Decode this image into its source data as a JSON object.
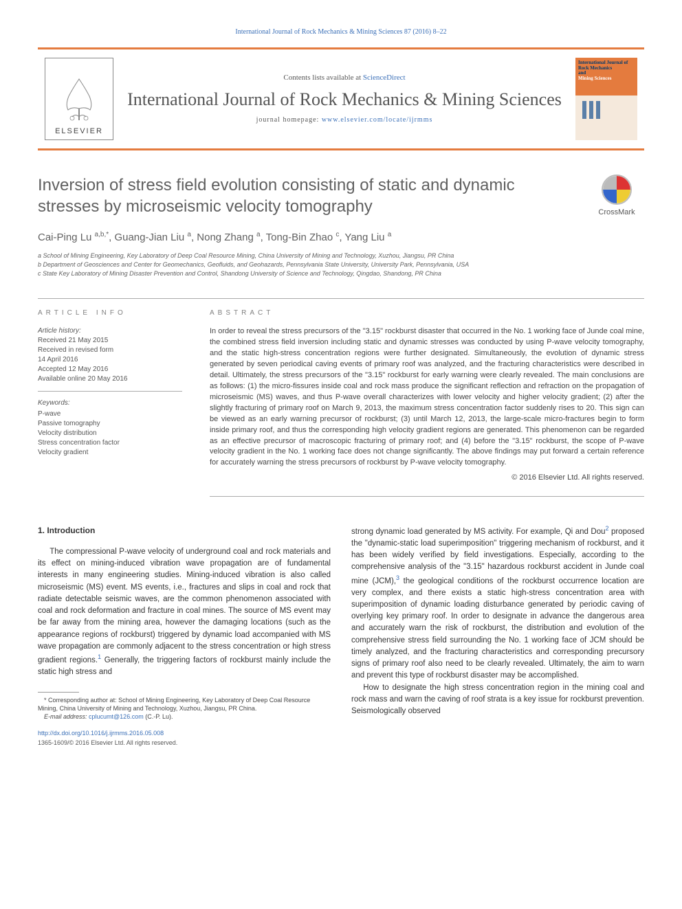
{
  "colors": {
    "accent_orange": "#e47b3e",
    "link_blue": "#3a6fb7",
    "heading_gray": "#606060",
    "body_text": "#333333",
    "meta_text": "#555555",
    "border_gray": "#aaaaaa"
  },
  "typography": {
    "journal_title_size_pt": 26,
    "article_title_size_pt": 24,
    "authors_size_pt": 15,
    "abstract_size_pt": 11,
    "body_size_pt": 11.5,
    "affiliation_size_pt": 9,
    "history_size_pt": 10
  },
  "header": {
    "top_citation": "International Journal of Rock Mechanics & Mining Sciences 87 (2016) 8–22",
    "contents_prefix": "Contents lists available at ",
    "contents_link": "ScienceDirect",
    "journal_title": "International Journal of Rock Mechanics & Mining Sciences",
    "homepage_prefix": "journal homepage: ",
    "homepage_link": "www.elsevier.com/locate/ijrmms",
    "publisher_logo_text": "ELSEVIER",
    "cover": {
      "line1": "International Journal of",
      "line2": "Rock Mechanics",
      "line3": "and",
      "line4": "Mining Sciences"
    }
  },
  "crossmark": {
    "label": "CrossMark"
  },
  "article": {
    "title": "Inversion of stress field evolution consisting of static and dynamic stresses by microseismic velocity tomography",
    "authors_html": "Cai-Ping Lu <sup>a,b,*</sup>, Guang-Jian Liu <sup>a</sup>, Nong Zhang <sup>a</sup>, Tong-Bin Zhao <sup>c</sup>, Yang Liu <sup>a</sup>",
    "affiliations": [
      "a School of Mining Engineering, Key Laboratory of Deep Coal Resource Mining, China University of Mining and Technology, Xuzhou, Jiangsu, PR China",
      "b Department of Geosciences and Center for Geomechanics, Geofluids, and Geohazards, Pennsylvania State University, University Park, Pennsylvania, USA",
      "c State Key Laboratory of Mining Disaster Prevention and Control, Shandong University of Science and Technology, Qingdao, Shandong, PR China"
    ]
  },
  "meta": {
    "article_info_label": "ARTICLE INFO",
    "abstract_label": "ABSTRACT",
    "history_heading": "Article history:",
    "history": [
      "Received 21 May 2015",
      "Received in revised form",
      "14 April 2016",
      "Accepted 12 May 2016",
      "Available online 20 May 2016"
    ],
    "keywords_heading": "Keywords:",
    "keywords": [
      "P-wave",
      "Passive tomography",
      "Velocity distribution",
      "Stress concentration factor",
      "Velocity gradient"
    ]
  },
  "abstract": {
    "text": "In order to reveal the stress precursors of the \"3.15\" rockburst disaster that occurred in the No. 1 working face of Junde coal mine, the combined stress field inversion including static and dynamic stresses was conducted by using P-wave velocity tomography, and the static high-stress concentration regions were further designated. Simultaneously, the evolution of dynamic stress generated by seven periodical caving events of primary roof was analyzed, and the fracturing characteristics were described in detail. Ultimately, the stress precursors of the \"3.15\" rockburst for early warning were clearly revealed. The main conclusions are as follows: (1) the micro-fissures inside coal and rock mass produce the significant reflection and refraction on the propagation of microseismic (MS) waves, and thus P-wave overall characterizes with lower velocity and higher velocity gradient; (2) after the slightly fracturing of primary roof on March 9, 2013, the maximum stress concentration factor suddenly rises to 20. This sign can be viewed as an early warning precursor of rockburst; (3) until March 12, 2013, the large-scale micro-fractures begin to form inside primary roof, and thus the corresponding high velocity gradient regions are generated. This phenomenon can be regarded as an effective precursor of macroscopic fracturing of primary roof; and (4) before the \"3.15\" rockburst, the scope of P-wave velocity gradient in the No. 1 working face does not change significantly. The above findings may put forward a certain reference for accurately warning the stress precursors of rockburst by P-wave velocity tomography.",
    "copyright": "© 2016 Elsevier Ltd. All rights reserved."
  },
  "body": {
    "section_heading": "1. Introduction",
    "col1_p1": "The compressional P-wave velocity of underground coal and rock materials and its effect on mining-induced vibration wave propagation are of fundamental interests in many engineering studies. Mining-induced vibration is also called microseismic (MS) event. MS events, i.e., fractures and slips in coal and rock that radiate detectable seismic waves, are the common phenomenon associated with coal and rock deformation and fracture in coal mines. The source of MS event may be far away from the mining area, however the damaging locations (such as the appearance regions of rockburst) triggered by dynamic load accompanied with MS wave propagation are commonly adjacent to the stress concentration or high stress gradient regions.<sup>1</sup> Generally, the triggering factors of rockburst mainly include the static high stress and",
    "col2_p1": "strong dynamic load generated by MS activity. For example, Qi and Dou<sup>2</sup> proposed the \"dynamic-static load superimposition\" triggering mechanism of rockburst, and it has been widely verified by field investigations. Especially, according to the comprehensive analysis of the \"3.15\" hazardous rockburst accident in Junde coal mine (JCM),<sup>3</sup> the geological conditions of the rockburst occurrence location are very complex, and there exists a static high-stress concentration area with superimposition of dynamic loading disturbance generated by periodic caving of overlying key primary roof. In order to designate in advance the dangerous area and accurately warn the risk of rockburst, the distribution and evolution of the comprehensive stress field surrounding the No. 1 working face of JCM should be timely analyzed, and the fracturing characteristics and corresponding precursory signs of primary roof also need to be clearly revealed. Ultimately, the aim to warn and prevent this type of rockburst disaster may be accomplished.",
    "col2_p2": "How to designate the high stress concentration region in the mining coal and rock mass and warn the caving of roof strata is a key issue for rockburst prevention. Seismologically observed"
  },
  "footnotes": {
    "corr": "* Corresponding author at: School of Mining Engineering, Key Laboratory of Deep Coal Resource Mining, China University of Mining and Technology, Xuzhou, Jiangsu, PR China.",
    "email_label": "E-mail address: ",
    "email": "cplucumt@126.com",
    "email_suffix": " (C.-P. Lu).",
    "doi": "http://dx.doi.org/10.1016/j.ijrmms.2016.05.008",
    "issn_line": "1365-1609/© 2016 Elsevier Ltd. All rights reserved."
  }
}
